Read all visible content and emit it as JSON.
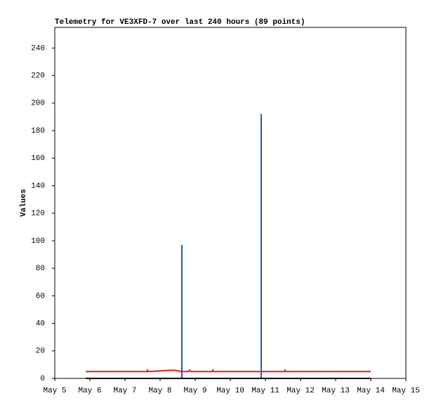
{
  "chart_data": {
    "type": "line",
    "title": "Telemetry for VE3XFD-7 over last 240 hours (89 points)",
    "y_label": "Values",
    "xlim": [
      5,
      15
    ],
    "xticks": [
      {
        "value": 5,
        "label": "May 5"
      },
      {
        "value": 6,
        "label": "May 6"
      },
      {
        "value": 7,
        "label": "May 7"
      },
      {
        "value": 8,
        "label": "May 8"
      },
      {
        "value": 9,
        "label": "May 9"
      },
      {
        "value": 10,
        "label": "May 10"
      },
      {
        "value": 11,
        "label": "May 11"
      },
      {
        "value": 12,
        "label": "May 12"
      },
      {
        "value": 13,
        "label": "May 13"
      },
      {
        "value": 14,
        "label": "May 14"
      },
      {
        "value": 15,
        "label": "May 15"
      }
    ],
    "ylim": [
      0,
      255
    ],
    "yticks": [
      0,
      20,
      40,
      60,
      80,
      100,
      120,
      140,
      160,
      180,
      200,
      220,
      240
    ],
    "grid": false,
    "series": [
      {
        "color": "#1f5fa8",
        "x": [
          5.88,
          8.62,
          8.62,
          8.62,
          10.88,
          10.88,
          10.88,
          14.0
        ],
        "values": [
          0,
          0,
          97,
          0,
          0,
          192,
          0,
          0
        ]
      },
      {
        "color": "#000000",
        "x": [
          5.88,
          14.0
        ],
        "values": [
          0,
          0
        ]
      },
      {
        "color": "#e0201a",
        "x": [
          5.88,
          7.62,
          7.64,
          7.66,
          8.0,
          8.4,
          8.6,
          8.8,
          8.84,
          8.88,
          9.48,
          9.5,
          9.52,
          11.54,
          11.56,
          11.58,
          14.0
        ],
        "values": [
          5,
          5,
          6,
          5,
          5.5,
          6,
          5,
          5,
          6,
          5,
          5,
          6,
          5,
          5,
          6,
          5,
          5
        ]
      }
    ]
  }
}
